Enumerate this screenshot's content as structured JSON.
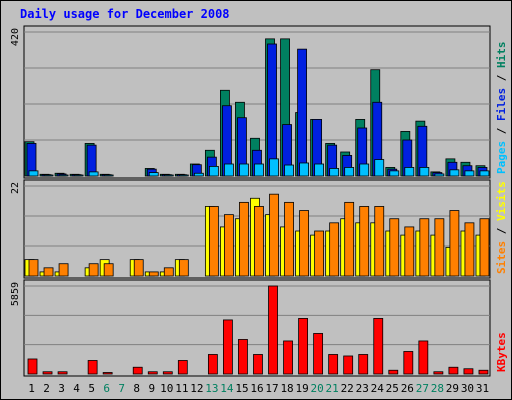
{
  "chart_data": {
    "type": "bar",
    "title": "Daily usage for December 2008",
    "categories": [
      "1",
      "2",
      "3",
      "4",
      "5",
      "6",
      "7",
      "8",
      "9",
      "10",
      "11",
      "12",
      "13",
      "14",
      "15",
      "16",
      "17",
      "18",
      "19",
      "20",
      "21",
      "22",
      "23",
      "24",
      "25",
      "26",
      "27",
      "28",
      "29",
      "30",
      "31"
    ],
    "weekend_days": [
      "6",
      "7",
      "13",
      "14",
      "20",
      "21",
      "27",
      "28"
    ],
    "panels": [
      {
        "name": "hits",
        "ymax_label": "420",
        "ylim": [
          0,
          420
        ],
        "legend": [
          "Pages",
          "Files",
          "Hits"
        ],
        "legend_colors": [
          "#00c0ff",
          "#0020e0",
          "#008060"
        ],
        "series": [
          {
            "name": "Hits",
            "color": "#008060",
            "values": [
              100,
              5,
              8,
              5,
              95,
              5,
              0,
              0,
              22,
              5,
              5,
              35,
              75,
              250,
              215,
              110,
              400,
              400,
              185,
              165,
              95,
              70,
              165,
              310,
              25,
              130,
              160,
              12,
              50,
              40,
              30
            ]
          },
          {
            "name": "Files",
            "color": "#0020e0",
            "values": [
              95,
              4,
              6,
              4,
              90,
              4,
              0,
              0,
              20,
              4,
              4,
              33,
              55,
              205,
              170,
              75,
              385,
              150,
              370,
              165,
              90,
              60,
              140,
              215,
              20,
              105,
              145,
              10,
              40,
              30,
              25
            ]
          },
          {
            "name": "Pages",
            "color": "#00c0ff",
            "values": [
              15,
              2,
              3,
              2,
              12,
              3,
              0,
              0,
              10,
              3,
              3,
              8,
              28,
              35,
              35,
              35,
              50,
              32,
              38,
              35,
              22,
              25,
              35,
              48,
              15,
              25,
              25,
              6,
              18,
              15,
              15
            ]
          }
        ]
      },
      {
        "name": "visits",
        "ymax_label": "22",
        "ylim": [
          0,
          22
        ],
        "legend": [
          "Sites",
          "Visits"
        ],
        "legend_colors": [
          "#ff8000",
          "#ffff00"
        ],
        "series": [
          {
            "name": "Visits",
            "color": "#ffff00",
            "values": [
              4,
              1,
              1,
              0,
              2,
              4,
              0,
              4,
              1,
              1,
              4,
              0,
              17,
              12,
              14,
              19,
              15,
              12,
              11,
              10,
              11,
              14,
              13,
              13,
              11,
              10,
              11,
              10,
              7,
              11,
              10
            ]
          },
          {
            "name": "Sites",
            "color": "#ff8000",
            "values": [
              4,
              2,
              3,
              0,
              3,
              3,
              0,
              4,
              1,
              2,
              4,
              0,
              17,
              15,
              18,
              17,
              20,
              18,
              16,
              11,
              13,
              18,
              17,
              17,
              14,
              12,
              14,
              14,
              16,
              13,
              14
            ]
          }
        ]
      },
      {
        "name": "kbytes",
        "ymax_label": "5859",
        "ylim": [
          0,
          5859
        ],
        "legend": [
          "KBytes"
        ],
        "legend_colors": [
          "#ff0000"
        ],
        "series": [
          {
            "name": "KBytes",
            "color": "#ff0000",
            "values": [
              1000,
              150,
              150,
              0,
              900,
              100,
              0,
              450,
              150,
              150,
              900,
              0,
              1300,
              3600,
              2300,
              1300,
              5859,
              2200,
              3700,
              2700,
              1300,
              1200,
              1300,
              3700,
              250,
              1500,
              2200,
              150,
              450,
              350,
              250
            ]
          }
        ]
      }
    ]
  },
  "colors": {
    "background": "#c0c0c0",
    "plot_background": "#c0c0c0",
    "title": "#0000ff",
    "weekday_label": "#000000",
    "weekend_label": "#008060",
    "grid": "#808080"
  }
}
